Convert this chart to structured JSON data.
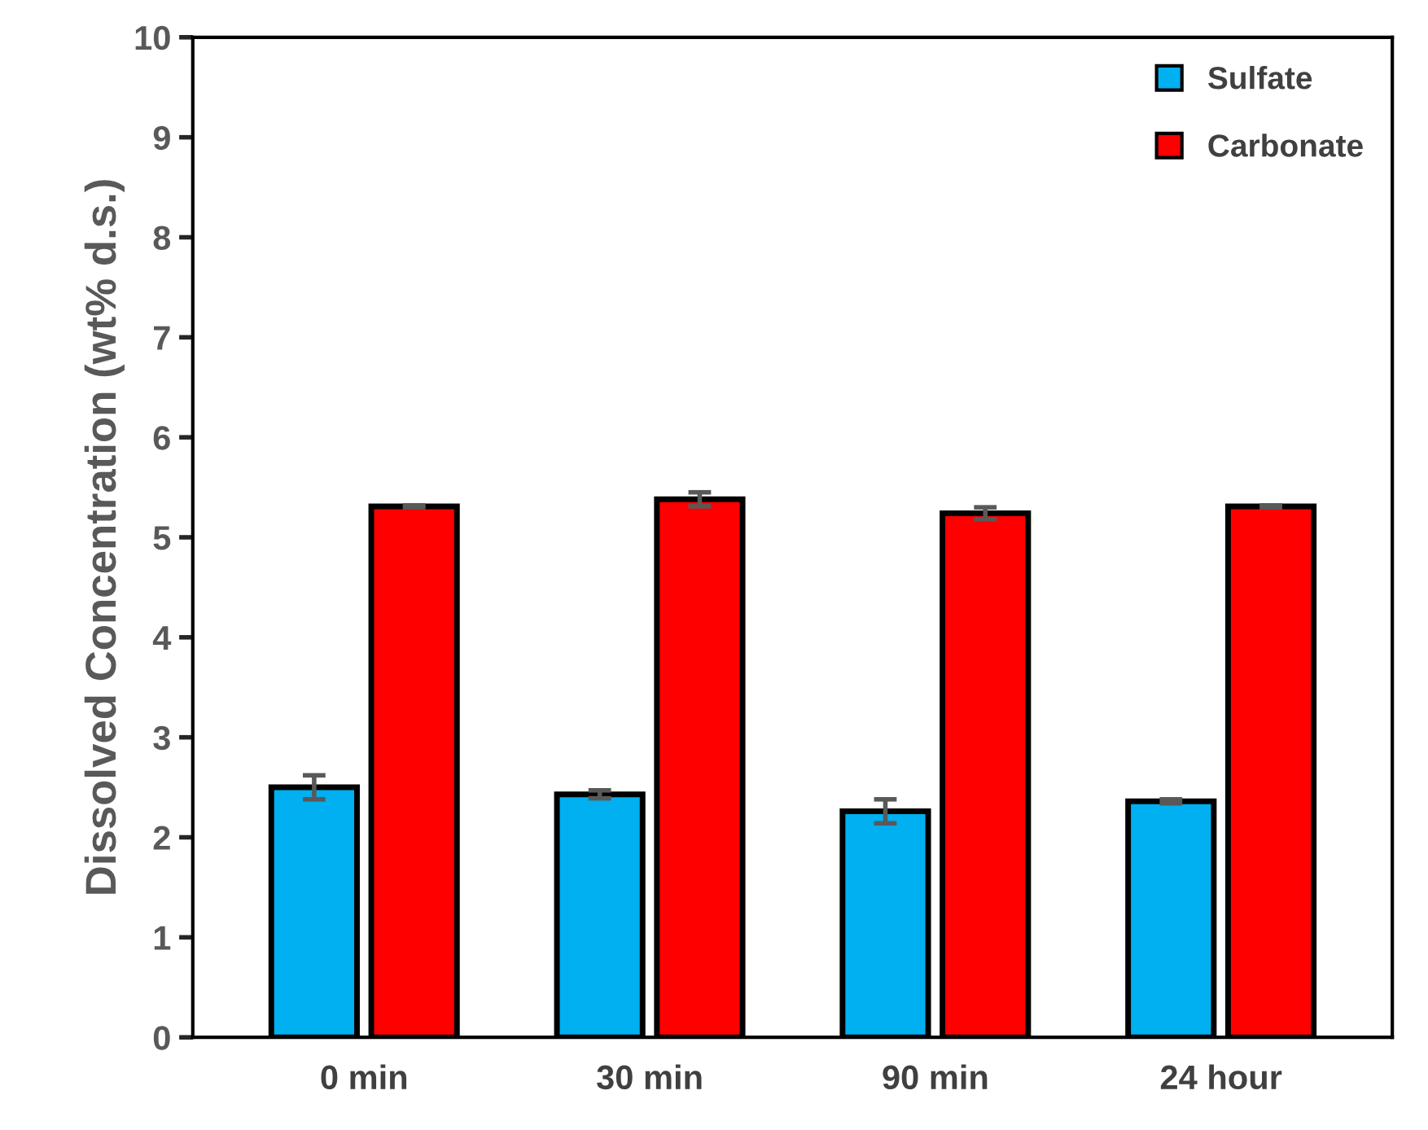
{
  "chart_data": {
    "type": "bar",
    "ylabel": "Dissolved Concentration (wt% d.s.)",
    "categories": [
      "0 min",
      "30 min",
      "90 min",
      "24 hour"
    ],
    "series": [
      {
        "name": "Sulfate",
        "color": "#00b0f0",
        "values": [
          2.5,
          2.43,
          2.26,
          2.36
        ],
        "errors": [
          0.12,
          0.04,
          0.12,
          0.02
        ]
      },
      {
        "name": "Carbonate",
        "color": "#ff0000",
        "values": [
          5.31,
          5.38,
          5.24,
          5.31
        ],
        "errors": [
          0.01,
          0.07,
          0.06,
          0.01
        ]
      }
    ],
    "ylim": [
      0,
      10
    ],
    "yticks": [
      0,
      1,
      2,
      3,
      4,
      5,
      6,
      7,
      8,
      9,
      10
    ],
    "grid": false,
    "legend": "top right"
  }
}
